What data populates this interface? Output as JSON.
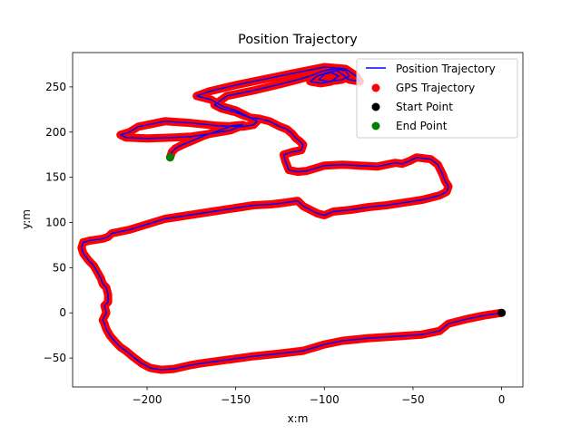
{
  "chart_data": {
    "type": "line",
    "title": "Position Trajectory",
    "xlabel": "x:m",
    "ylabel": "y:m",
    "xlim": [
      -242,
      12
    ],
    "ylim": [
      -82,
      288
    ],
    "xticks": [
      -200,
      -150,
      -100,
      -50,
      0
    ],
    "xtick_labels": [
      "−200",
      "−150",
      "−100",
      "−50",
      "0"
    ],
    "yticks": [
      -50,
      0,
      50,
      100,
      150,
      200,
      250
    ],
    "ytick_labels": [
      "−50",
      "0",
      "50",
      "100",
      "150",
      "200",
      "250"
    ],
    "grid": false,
    "legend_position": "top-right",
    "colors": {
      "position": "#0000ff",
      "gps": "#ff0000",
      "start": "#000000",
      "end": "#008000"
    },
    "legend": [
      {
        "label": "Position Trajectory",
        "marker": "line",
        "color": "#0000ff"
      },
      {
        "label": "GPS Trajectory",
        "marker": "dot",
        "color": "#ff0000"
      },
      {
        "label": "Start Point",
        "marker": "dot",
        "color": "#000000"
      },
      {
        "label": "End Point",
        "marker": "dot",
        "color": "#008000"
      }
    ],
    "trajectory": [
      [
        0,
        0
      ],
      [
        -10,
        -3
      ],
      [
        -20,
        -7
      ],
      [
        -30,
        -12
      ],
      [
        -35,
        -20
      ],
      [
        -45,
        -24
      ],
      [
        -60,
        -26
      ],
      [
        -75,
        -28
      ],
      [
        -90,
        -31
      ],
      [
        -100,
        -35
      ],
      [
        -105,
        -38
      ],
      [
        -112,
        -42
      ],
      [
        -125,
        -45
      ],
      [
        -140,
        -48
      ],
      [
        -155,
        -52
      ],
      [
        -170,
        -56
      ],
      [
        -176,
        -58
      ],
      [
        -185,
        -62
      ],
      [
        -192,
        -63
      ],
      [
        -198,
        -61
      ],
      [
        -203,
        -56
      ],
      [
        -207,
        -50
      ],
      [
        -212,
        -42
      ],
      [
        -215,
        -38
      ],
      [
        -218,
        -32
      ],
      [
        -221,
        -25
      ],
      [
        -223,
        -18
      ],
      [
        -224,
        -12
      ],
      [
        -225,
        -8
      ],
      [
        -223,
        0
      ],
      [
        -224,
        8
      ],
      [
        -222,
        12
      ],
      [
        -222,
        20
      ],
      [
        -223,
        28
      ],
      [
        -225,
        32
      ],
      [
        -226,
        38
      ],
      [
        -228,
        45
      ],
      [
        -230,
        52
      ],
      [
        -233,
        58
      ],
      [
        -236,
        66
      ],
      [
        -237,
        72
      ],
      [
        -236,
        78
      ],
      [
        -232,
        80
      ],
      [
        -225,
        82
      ],
      [
        -222,
        84
      ],
      [
        -220,
        88
      ],
      [
        -215,
        90
      ],
      [
        -210,
        92
      ],
      [
        -205,
        95
      ],
      [
        -200,
        98
      ],
      [
        -195,
        101
      ],
      [
        -190,
        104
      ],
      [
        -180,
        107
      ],
      [
        -170,
        110
      ],
      [
        -160,
        113
      ],
      [
        -150,
        116
      ],
      [
        -140,
        119
      ],
      [
        -130,
        120
      ],
      [
        -122,
        122
      ],
      [
        -115,
        124
      ],
      [
        -112,
        118
      ],
      [
        -108,
        114
      ],
      [
        -104,
        110
      ],
      [
        -100,
        108
      ],
      [
        -95,
        112
      ],
      [
        -85,
        114
      ],
      [
        -75,
        117
      ],
      [
        -65,
        119
      ],
      [
        -55,
        122
      ],
      [
        -45,
        125
      ],
      [
        -35,
        130
      ],
      [
        -31,
        134
      ],
      [
        -30,
        140
      ],
      [
        -32,
        146
      ],
      [
        -33,
        152
      ],
      [
        -36,
        164
      ],
      [
        -40,
        170
      ],
      [
        -48,
        172
      ],
      [
        -52,
        168
      ],
      [
        -56,
        165
      ],
      [
        -60,
        166
      ],
      [
        -65,
        164
      ],
      [
        -70,
        162
      ],
      [
        -80,
        163
      ],
      [
        -90,
        164
      ],
      [
        -100,
        163
      ],
      [
        -105,
        160
      ],
      [
        -110,
        157
      ],
      [
        -115,
        156
      ],
      [
        -120,
        158
      ],
      [
        -122,
        168
      ],
      [
        -123,
        175
      ],
      [
        -118,
        178
      ],
      [
        -113,
        180
      ],
      [
        -112,
        186
      ],
      [
        -114,
        190
      ],
      [
        -116,
        193
      ],
      [
        -118,
        198
      ],
      [
        -121,
        203
      ],
      [
        -126,
        207
      ],
      [
        -131,
        212
      ],
      [
        -137,
        215
      ],
      [
        -142,
        216
      ],
      [
        -145,
        218
      ],
      [
        -150,
        222
      ],
      [
        -158,
        226
      ],
      [
        -162,
        230
      ],
      [
        -155,
        240
      ],
      [
        -140,
        246
      ],
      [
        -125,
        253
      ],
      [
        -115,
        258
      ],
      [
        -108,
        262
      ],
      [
        -100,
        268
      ],
      [
        -94,
        270
      ],
      [
        -88,
        268
      ],
      [
        -86,
        262
      ],
      [
        -90,
        258
      ],
      [
        -98,
        256
      ],
      [
        -103,
        258
      ],
      [
        -100,
        264
      ],
      [
        -96,
        266
      ],
      [
        -92,
        262
      ],
      [
        -96,
        256
      ],
      [
        -102,
        254
      ],
      [
        -108,
        256
      ],
      [
        -104,
        262
      ],
      [
        -98,
        266
      ],
      [
        -93,
        268
      ],
      [
        -90,
        264
      ],
      [
        -86,
        258
      ],
      [
        -80,
        256
      ],
      [
        -82,
        262
      ],
      [
        -88,
        270
      ],
      [
        -100,
        272
      ],
      [
        -110,
        268
      ],
      [
        -120,
        264
      ],
      [
        -135,
        258
      ],
      [
        -150,
        252
      ],
      [
        -165,
        245
      ],
      [
        -172,
        240
      ],
      [
        -164,
        236
      ],
      [
        -157,
        228
      ],
      [
        -150,
        224
      ],
      [
        -142,
        216
      ],
      [
        -138,
        212
      ],
      [
        -140,
        208
      ],
      [
        -146,
        206
      ],
      [
        -160,
        207
      ],
      [
        -175,
        210
      ],
      [
        -190,
        212
      ],
      [
        -205,
        206
      ],
      [
        -210,
        200
      ],
      [
        -215,
        197
      ],
      [
        -212,
        194
      ],
      [
        -200,
        193
      ],
      [
        -185,
        194
      ],
      [
        -175,
        195
      ],
      [
        -165,
        198
      ],
      [
        -153,
        202
      ],
      [
        -148,
        206
      ],
      [
        -146,
        208
      ],
      [
        -152,
        207
      ],
      [
        -162,
        200
      ],
      [
        -168,
        196
      ],
      [
        -175,
        190
      ],
      [
        -180,
        186
      ],
      [
        -184,
        182
      ],
      [
        -186,
        178
      ],
      [
        -187,
        172
      ]
    ]
  }
}
